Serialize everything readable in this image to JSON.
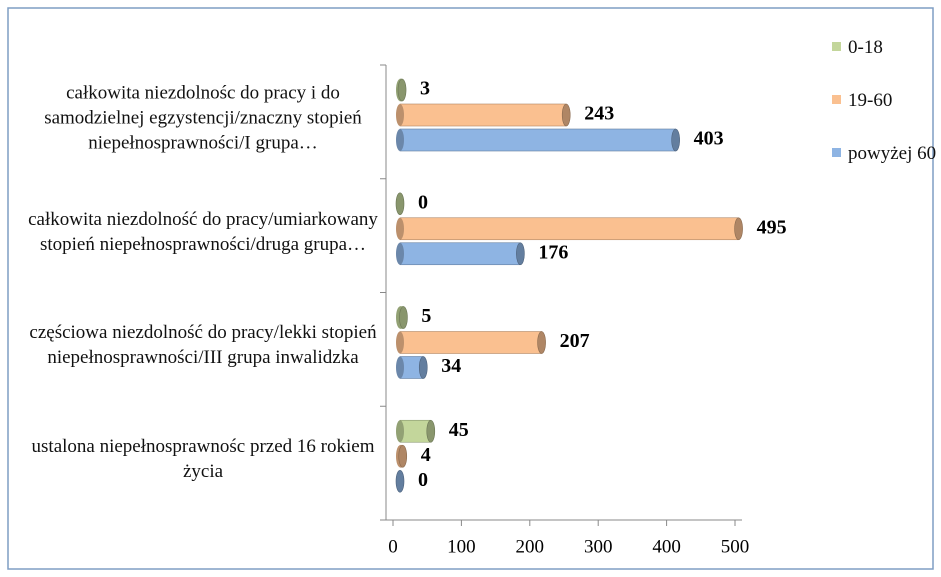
{
  "chart_data": {
    "type": "bar",
    "orientation": "horizontal",
    "categories": [
      "całkowita niezdolnośc do pracy i do samodzielnej egzystencji/znaczny stopień niepełnosprawności/I grupa…",
      "całkowita niezdolność do pracy/umiarkowany stopień niepełnosprawności/druga grupa…",
      "częściowa niezdolność do pracy/lekki stopień niepełnosprawności/III grupa inwalidzka",
      "ustalona niepełnosprawnośc przed 16 rokiem życia"
    ],
    "series": [
      {
        "name": "0-18",
        "color": "#c3d69b",
        "values": [
          3,
          0,
          5,
          45
        ]
      },
      {
        "name": "19-60",
        "color": "#fac090",
        "values": [
          243,
          495,
          207,
          4
        ]
      },
      {
        "name": "powyżej 60",
        "color": "#8eb4e3",
        "values": [
          403,
          176,
          34,
          0
        ]
      }
    ],
    "xlim": [
      0,
      500
    ],
    "xticks": [
      0,
      100,
      200,
      300,
      400,
      500
    ],
    "grid": false,
    "legend": "right"
  }
}
